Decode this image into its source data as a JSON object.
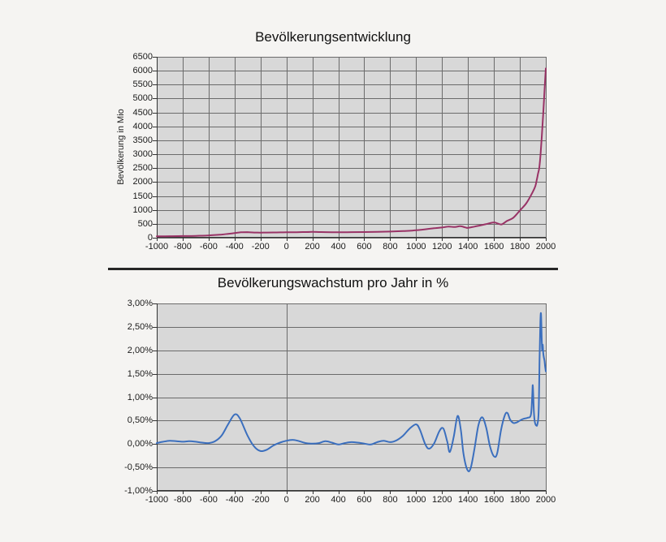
{
  "page": {
    "background": "#f5f4f2",
    "divider_color": "#262626"
  },
  "chart_data": [
    {
      "type": "line",
      "title": "Bevölkerungsentwicklung",
      "ylabel": "Bevölkerung in Mio",
      "xlabel": "",
      "legend": "none",
      "grid": "both",
      "line_color": "#993366",
      "plot_bg": "#d8d8d8",
      "grid_color": "#6b6b6b",
      "axis_color": "#333333",
      "xlim": [
        -1000,
        2000
      ],
      "ylim": [
        0,
        6500
      ],
      "xticks": [
        -1000,
        -800,
        -600,
        -400,
        -200,
        0,
        200,
        400,
        600,
        800,
        1000,
        1200,
        1400,
        1600,
        1800,
        2000
      ],
      "yticks": [
        0,
        500,
        1000,
        1500,
        2000,
        2500,
        3000,
        3500,
        4000,
        4500,
        5000,
        5500,
        6000,
        6500
      ],
      "ytick_labels": [
        "0",
        "500",
        "1000",
        "1500",
        "2000",
        "2500",
        "3000",
        "3500",
        "4000",
        "4500",
        "5000",
        "5500",
        "6000",
        "6500"
      ],
      "vlines": "all",
      "points": [
        [
          -1000,
          50
        ],
        [
          -900,
          55
        ],
        [
          -800,
          60
        ],
        [
          -700,
          68
        ],
        [
          -600,
          85
        ],
        [
          -500,
          115
        ],
        [
          -450,
          140
        ],
        [
          -400,
          168
        ],
        [
          -350,
          195
        ],
        [
          -300,
          200
        ],
        [
          -250,
          188
        ],
        [
          -200,
          185
        ],
        [
          -150,
          188
        ],
        [
          -100,
          190
        ],
        [
          -50,
          193
        ],
        [
          0,
          195
        ],
        [
          50,
          198
        ],
        [
          100,
          200
        ],
        [
          150,
          205
        ],
        [
          200,
          210
        ],
        [
          250,
          205
        ],
        [
          300,
          200
        ],
        [
          400,
          195
        ],
        [
          500,
          200
        ],
        [
          600,
          205
        ],
        [
          700,
          212
        ],
        [
          800,
          222
        ],
        [
          900,
          240
        ],
        [
          1000,
          268
        ],
        [
          1100,
          320
        ],
        [
          1150,
          348
        ],
        [
          1200,
          368
        ],
        [
          1250,
          400
        ],
        [
          1300,
          385
        ],
        [
          1340,
          415
        ],
        [
          1380,
          370
        ],
        [
          1400,
          355
        ],
        [
          1450,
          400
        ],
        [
          1500,
          448
        ],
        [
          1550,
          500
        ],
        [
          1600,
          552
        ],
        [
          1630,
          510
        ],
        [
          1660,
          480
        ],
        [
          1700,
          600
        ],
        [
          1750,
          720
        ],
        [
          1800,
          980
        ],
        [
          1850,
          1240
        ],
        [
          1900,
          1650
        ],
        [
          1920,
          1860
        ],
        [
          1930,
          2070
        ],
        [
          1940,
          2300
        ],
        [
          1950,
          2520
        ],
        [
          1960,
          3020
        ],
        [
          1970,
          3700
        ],
        [
          1980,
          4440
        ],
        [
          1990,
          5270
        ],
        [
          2000,
          6080
        ]
      ]
    },
    {
      "type": "line",
      "title": "Bevölkerungswachstum pro Jahr in %",
      "ylabel": "",
      "xlabel": "",
      "legend": "none",
      "grid": "horizontal",
      "line_color": "#3b6fbe",
      "plot_bg": "#d8d8d8",
      "grid_color": "#6b6b6b",
      "axis_color": "#333333",
      "xlim": [
        -1000,
        2000
      ],
      "ylim": [
        -1,
        3
      ],
      "xticks": [
        -1000,
        -800,
        -600,
        -400,
        -200,
        0,
        200,
        400,
        600,
        800,
        1000,
        1200,
        1400,
        1600,
        1800,
        2000
      ],
      "yticks": [
        -1,
        -0.5,
        0,
        0.5,
        1,
        1.5,
        2,
        2.5,
        3
      ],
      "ytick_labels": [
        "-1,00%",
        "-0,50%",
        "0,00%",
        "0,50%",
        "1,00%",
        "1,50%",
        "2,00%",
        "2,50%",
        "3,00%"
      ],
      "vlines": [
        -1000,
        0,
        2000
      ],
      "points": [
        [
          -1000,
          0.02
        ],
        [
          -950,
          0.05
        ],
        [
          -900,
          0.07
        ],
        [
          -850,
          0.06
        ],
        [
          -800,
          0.05
        ],
        [
          -750,
          0.06
        ],
        [
          -700,
          0.05
        ],
        [
          -650,
          0.03
        ],
        [
          -600,
          0.02
        ],
        [
          -550,
          0.06
        ],
        [
          -500,
          0.18
        ],
        [
          -450,
          0.42
        ],
        [
          -400,
          0.63
        ],
        [
          -360,
          0.55
        ],
        [
          -300,
          0.18
        ],
        [
          -250,
          -0.05
        ],
        [
          -200,
          -0.15
        ],
        [
          -150,
          -0.12
        ],
        [
          -100,
          -0.03
        ],
        [
          -50,
          0.03
        ],
        [
          0,
          0.07
        ],
        [
          50,
          0.09
        ],
        [
          100,
          0.06
        ],
        [
          150,
          0.02
        ],
        [
          200,
          0.01
        ],
        [
          250,
          0.02
        ],
        [
          300,
          0.06
        ],
        [
          350,
          0.03
        ],
        [
          400,
          -0.01
        ],
        [
          450,
          0.02
        ],
        [
          500,
          0.04
        ],
        [
          550,
          0.03
        ],
        [
          600,
          0.01
        ],
        [
          650,
          -0.01
        ],
        [
          700,
          0.04
        ],
        [
          750,
          0.07
        ],
        [
          800,
          0.04
        ],
        [
          850,
          0.08
        ],
        [
          900,
          0.18
        ],
        [
          950,
          0.33
        ],
        [
          1000,
          0.42
        ],
        [
          1030,
          0.3
        ],
        [
          1070,
          0.0
        ],
        [
          1100,
          -0.1
        ],
        [
          1140,
          0.02
        ],
        [
          1180,
          0.28
        ],
        [
          1210,
          0.33
        ],
        [
          1240,
          0.05
        ],
        [
          1260,
          -0.17
        ],
        [
          1290,
          0.15
        ],
        [
          1320,
          0.6
        ],
        [
          1345,
          0.3
        ],
        [
          1365,
          -0.2
        ],
        [
          1395,
          -0.55
        ],
        [
          1420,
          -0.52
        ],
        [
          1450,
          -0.1
        ],
        [
          1480,
          0.4
        ],
        [
          1510,
          0.57
        ],
        [
          1540,
          0.35
        ],
        [
          1570,
          -0.05
        ],
        [
          1600,
          -0.26
        ],
        [
          1625,
          -0.2
        ],
        [
          1655,
          0.3
        ],
        [
          1685,
          0.62
        ],
        [
          1705,
          0.66
        ],
        [
          1725,
          0.52
        ],
        [
          1750,
          0.45
        ],
        [
          1775,
          0.46
        ],
        [
          1800,
          0.5
        ],
        [
          1830,
          0.54
        ],
        [
          1860,
          0.56
        ],
        [
          1885,
          0.62
        ],
        [
          1895,
          1.0
        ],
        [
          1900,
          1.25
        ],
        [
          1908,
          0.7
        ],
        [
          1915,
          0.48
        ],
        [
          1925,
          0.4
        ],
        [
          1935,
          0.42
        ],
        [
          1945,
          0.7
        ],
        [
          1952,
          1.8
        ],
        [
          1958,
          2.6
        ],
        [
          1963,
          2.78
        ],
        [
          1968,
          2.3
        ],
        [
          1972,
          2.0
        ],
        [
          1976,
          2.12
        ],
        [
          1980,
          1.95
        ],
        [
          1985,
          1.85
        ],
        [
          1990,
          1.78
        ],
        [
          1995,
          1.65
        ],
        [
          2000,
          1.55
        ]
      ]
    }
  ]
}
